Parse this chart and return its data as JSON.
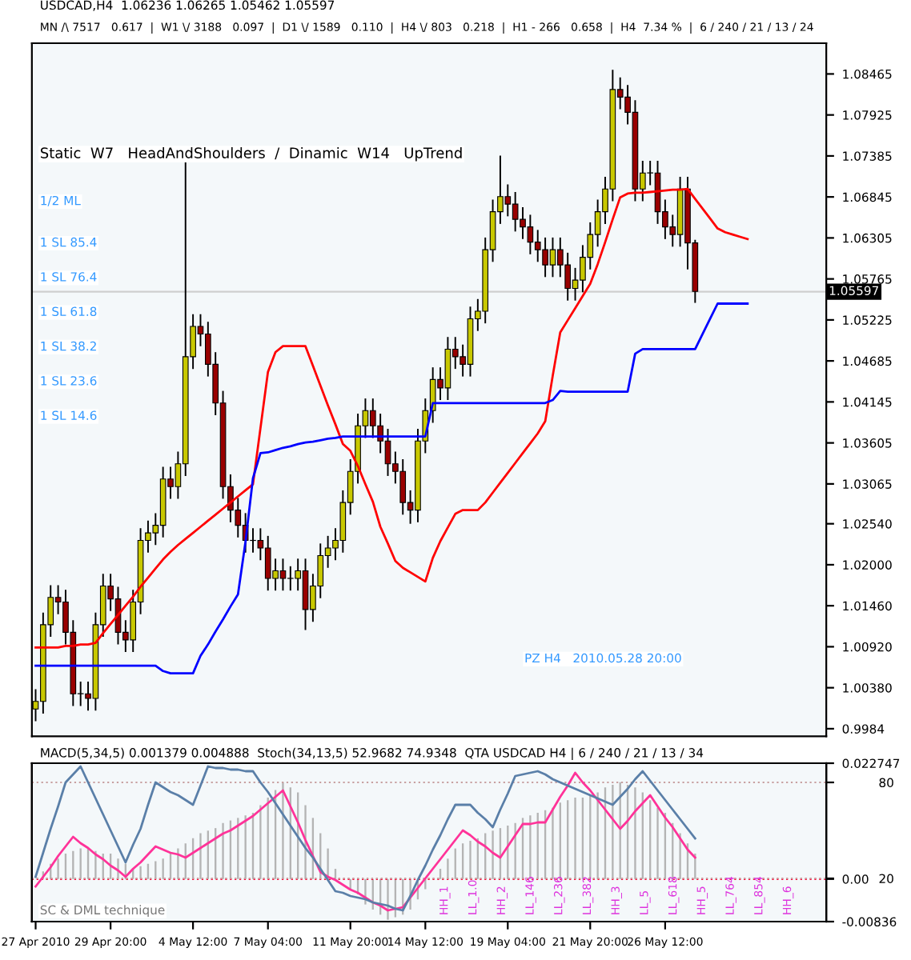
{
  "chart_data": [
    {
      "type": "candlestick",
      "title": "USDCAD,H4  1.06236 1.06265 1.05462 1.05597",
      "subtitle": "MN /\\ 7517   0.617  |  W1 \\/ 3188   0.097  |  D1 \\/ 1589   0.110  |  H4 \\/ 803   0.218  |  H1 - 266   0.658  |  H4  7.34 %  |  6 / 240 / 21 / 13 / 24",
      "categories": [
        null,
        null,
        null,
        null,
        null,
        null,
        null,
        null,
        null,
        null,
        null,
        null,
        null,
        null,
        null,
        null,
        null,
        null,
        null,
        null,
        null,
        null,
        null,
        null,
        null,
        null,
        null,
        null,
        null,
        null,
        null,
        null,
        null,
        null,
        null,
        null,
        null,
        null,
        null,
        null,
        null,
        null,
        null,
        null,
        null,
        null,
        null,
        null,
        null,
        null,
        null,
        null,
        null,
        null,
        null,
        null,
        null,
        null,
        null,
        null,
        null,
        null,
        null,
        null,
        null,
        null,
        null,
        null,
        null,
        null,
        null,
        null,
        null,
        null,
        null,
        null,
        null,
        null,
        null,
        null,
        null,
        null,
        null,
        null,
        null,
        null,
        null,
        null,
        null,
        null,
        null,
        null,
        null,
        null,
        null,
        null,
        null,
        null,
        null,
        null,
        null,
        null,
        null,
        null,
        null,
        null
      ],
      "ohlc": [
        [
          1.001,
          1.0035,
          0.9995,
          1.002
        ],
        [
          1.002,
          1.0136,
          1.0005,
          1.0121
        ],
        [
          1.0121,
          1.0172,
          1.0106,
          1.0157
        ],
        [
          1.0157,
          1.0172,
          1.0136,
          1.0151
        ],
        [
          1.0151,
          1.0166,
          1.0096,
          1.0111
        ],
        [
          1.0111,
          1.0126,
          1.0015,
          1.003
        ],
        [
          1.003,
          1.0045,
          1.0015,
          1.003
        ],
        [
          1.003,
          1.0045,
          1.0009,
          1.0024
        ],
        [
          1.0024,
          1.0136,
          1.0009,
          1.0121
        ],
        [
          1.0121,
          1.0187,
          1.0106,
          1.0172
        ],
        [
          1.0172,
          1.0187,
          1.014,
          1.0155
        ],
        [
          1.0155,
          1.017,
          1.0096,
          1.0111
        ],
        [
          1.0111,
          1.0126,
          1.0086,
          1.0101
        ],
        [
          1.0101,
          1.0166,
          1.0086,
          1.0151
        ],
        [
          1.0151,
          1.0247,
          1.0136,
          1.0232
        ],
        [
          1.0232,
          1.0257,
          1.0217,
          1.0242
        ],
        [
          1.0242,
          1.0267,
          1.0227,
          1.0252
        ],
        [
          1.0252,
          1.0328,
          1.0237,
          1.0313
        ],
        [
          1.0313,
          1.0328,
          1.0288,
          1.0303
        ],
        [
          1.0303,
          1.0348,
          1.0288,
          1.0333
        ],
        [
          1.0333,
          1.073,
          1.0318,
          1.0474
        ],
        [
          1.0474,
          1.0529,
          1.0459,
          1.0514
        ],
        [
          1.0514,
          1.0529,
          1.0489,
          1.0504
        ],
        [
          1.0504,
          1.0519,
          1.0449,
          1.0464
        ],
        [
          1.0464,
          1.0479,
          1.0398,
          1.0413
        ],
        [
          1.0413,
          1.0428,
          1.0288,
          1.0303
        ],
        [
          1.0303,
          1.0318,
          1.0257,
          1.0272
        ],
        [
          1.0272,
          1.0287,
          1.0237,
          1.0252
        ],
        [
          1.0252,
          1.0267,
          1.0217,
          1.0232
        ],
        [
          1.0232,
          1.0247,
          1.0217,
          1.0232
        ],
        [
          1.0232,
          1.0247,
          1.0207,
          1.0222
        ],
        [
          1.0222,
          1.0237,
          1.0167,
          1.0182
        ],
        [
          1.0182,
          1.0207,
          1.0167,
          1.0192
        ],
        [
          1.0192,
          1.0207,
          1.0167,
          1.0182
        ],
        [
          1.0182,
          1.0197,
          1.0167,
          1.0182
        ],
        [
          1.0182,
          1.0207,
          1.0167,
          1.0192
        ],
        [
          1.0192,
          1.0207,
          1.0115,
          1.0141
        ],
        [
          1.0141,
          1.0187,
          1.0126,
          1.0172
        ],
        [
          1.0172,
          1.0227,
          1.0157,
          1.0212
        ],
        [
          1.0212,
          1.0237,
          1.0197,
          1.0222
        ],
        [
          1.0222,
          1.0247,
          1.0207,
          1.0232
        ],
        [
          1.0232,
          1.0297,
          1.0217,
          1.0282
        ],
        [
          1.0282,
          1.0338,
          1.0267,
          1.0323
        ],
        [
          1.0323,
          1.0398,
          1.0308,
          1.0383
        ],
        [
          1.0383,
          1.0418,
          1.0368,
          1.0403
        ],
        [
          1.0403,
          1.0418,
          1.0368,
          1.0383
        ],
        [
          1.0383,
          1.0398,
          1.0348,
          1.0363
        ],
        [
          1.0363,
          1.0378,
          1.0318,
          1.0333
        ],
        [
          1.0333,
          1.0348,
          1.0308,
          1.0323
        ],
        [
          1.0323,
          1.0338,
          1.0267,
          1.0282
        ],
        [
          1.0282,
          1.0297,
          1.0255,
          1.0272
        ],
        [
          1.0272,
          1.0378,
          1.0257,
          1.0363
        ],
        [
          1.0363,
          1.0418,
          1.0348,
          1.0403
        ],
        [
          1.0403,
          1.0459,
          1.0388,
          1.0444
        ],
        [
          1.0444,
          1.0459,
          1.0418,
          1.0433
        ],
        [
          1.0433,
          1.0499,
          1.0418,
          1.0484
        ],
        [
          1.0484,
          1.0499,
          1.0459,
          1.0474
        ],
        [
          1.0474,
          1.0489,
          1.0449,
          1.0464
        ],
        [
          1.0464,
          1.0539,
          1.0449,
          1.0524
        ],
        [
          1.0524,
          1.0549,
          1.0509,
          1.0534
        ],
        [
          1.0534,
          1.063,
          1.0519,
          1.0615
        ],
        [
          1.0615,
          1.068,
          1.06,
          1.0665
        ],
        [
          1.0665,
          1.0738,
          1.065,
          1.0685
        ],
        [
          1.0685,
          1.07,
          1.066,
          1.0675
        ],
        [
          1.0675,
          1.069,
          1.064,
          1.0655
        ],
        [
          1.0655,
          1.067,
          1.063,
          1.0645
        ],
        [
          1.0645,
          1.066,
          1.061,
          1.0625
        ],
        [
          1.0625,
          1.064,
          1.06,
          1.0615
        ],
        [
          1.0615,
          1.063,
          1.058,
          1.0595
        ],
        [
          1.0595,
          1.063,
          1.058,
          1.0615
        ],
        [
          1.0615,
          1.063,
          1.058,
          1.0595
        ],
        [
          1.0595,
          1.061,
          1.0549,
          1.0564
        ],
        [
          1.0564,
          1.059,
          1.0549,
          1.0575
        ],
        [
          1.0575,
          1.062,
          1.056,
          1.0605
        ],
        [
          1.0605,
          1.065,
          1.059,
          1.0635
        ],
        [
          1.0635,
          1.068,
          1.062,
          1.0665
        ],
        [
          1.0665,
          1.071,
          1.065,
          1.0695
        ],
        [
          1.0695,
          1.0851,
          1.068,
          1.0826
        ],
        [
          1.0826,
          1.0841,
          1.0801,
          1.0816
        ],
        [
          1.0816,
          1.0831,
          1.0781,
          1.0796
        ],
        [
          1.0796,
          1.0811,
          1.068,
          1.0695
        ],
        [
          1.0695,
          1.0731,
          1.068,
          1.0716
        ],
        [
          1.0716,
          1.0731,
          1.0701,
          1.0716
        ],
        [
          1.0716,
          1.0731,
          1.065,
          1.0665
        ],
        [
          1.0665,
          1.068,
          1.063,
          1.0645
        ],
        [
          1.0645,
          1.066,
          1.062,
          1.0635
        ],
        [
          1.0635,
          1.071,
          1.062,
          1.0695
        ],
        [
          1.0695,
          1.071,
          1.059,
          1.0624
        ],
        [
          1.0624,
          1.0627,
          1.0546,
          1.056
        ],
        null,
        null,
        null,
        null,
        null,
        null,
        null,
        null,
        null,
        null,
        null,
        null,
        null,
        null,
        null,
        null,
        null
      ],
      "colors": [
        "#c8c800",
        "#c8c800",
        "#c8c800",
        "#990000",
        "#990000",
        "#990000",
        "#c8c800",
        "#990000",
        "#c8c800",
        "#c8c800",
        "#990000",
        "#990000",
        "#990000",
        "#c8c800",
        "#c8c800",
        "#c8c800",
        "#c8c800",
        "#c8c800",
        "#990000",
        "#c8c800",
        "#c8c800",
        "#c8c800",
        "#990000",
        "#990000",
        "#990000",
        "#990000",
        "#990000",
        "#990000",
        "#990000",
        "#c8c800",
        "#990000",
        "#990000",
        "#c8c800",
        "#990000",
        "#c8c800",
        "#c8c800",
        "#990000",
        "#c8c800",
        "#c8c800",
        "#c8c800",
        "#c8c800",
        "#c8c800",
        "#c8c800",
        "#c8c800",
        "#c8c800",
        "#990000",
        "#990000",
        "#990000",
        "#990000",
        "#990000",
        "#990000",
        "#c8c800",
        "#c8c800",
        "#c8c800",
        "#990000",
        "#c8c800",
        "#990000",
        "#990000",
        "#c8c800",
        "#c8c800",
        "#c8c800",
        "#c8c800",
        "#c8c800",
        "#990000",
        "#990000",
        "#990000",
        "#990000",
        "#990000",
        "#990000",
        "#c8c800",
        "#990000",
        "#990000",
        "#c8c800",
        "#c8c800",
        "#c8c800",
        "#c8c800",
        "#c8c800",
        "#c8c800",
        "#990000",
        "#990000",
        "#990000",
        "#c8c800",
        "#c8c800",
        "#990000",
        "#990000",
        "#990000",
        "#c8c800",
        "#990000",
        "#990000",
        null,
        null,
        null,
        null,
        null,
        null,
        null,
        null,
        null,
        null,
        null,
        null,
        null,
        null,
        null,
        null,
        null
      ],
      "series": [
        {
          "type": "line",
          "color": "#ff0000",
          "values": [
            1.0091,
            1.0091,
            1.0091,
            1.0091,
            1.0093,
            1.0093,
            1.0095,
            1.0095,
            1.0097,
            1.011,
            1.0122,
            1.0134,
            1.0146,
            1.0158,
            1.0171,
            1.0183,
            1.0195,
            1.0207,
            1.0217,
            1.0226,
            1.0234,
            1.0242,
            1.025,
            1.0258,
            1.0266,
            1.0274,
            1.0282,
            1.029,
            1.0298,
            1.0306,
            1.038,
            1.0454,
            1.048,
            1.0488,
            1.0488,
            1.0488,
            1.0488,
            1.0462,
            1.0436,
            1.041,
            1.0385,
            1.0359,
            1.035,
            1.033,
            1.0306,
            1.0283,
            1.025,
            1.0228,
            1.0205,
            1.0196,
            1.019,
            1.0184,
            1.0178,
            1.0209,
            1.0231,
            1.0249,
            1.0267,
            1.0272,
            1.0272,
            1.0272,
            1.0282,
            1.0295,
            1.0308,
            1.0321,
            1.0334,
            1.0347,
            1.036,
            1.0373,
            1.0389,
            1.0449,
            1.0506,
            1.0522,
            1.0538,
            1.0554,
            1.057,
            1.0596,
            1.0625,
            1.0655,
            1.0684,
            1.0689,
            1.069,
            1.069,
            1.0691,
            1.0692,
            1.0693,
            1.0694,
            1.0694,
            1.0695,
            1.0682,
            1.0669,
            1.0656,
            1.0643,
            1.0638,
            1.0635,
            1.0632,
            1.0629,
            null,
            null,
            null,
            null,
            null,
            null,
            null,
            null,
            null,
            null
          ]
        },
        {
          "type": "line",
          "color": "#0000ff",
          "values": [
            1.0067,
            1.0067,
            1.0067,
            1.0067,
            1.0067,
            1.0067,
            1.0067,
            1.0067,
            1.0067,
            1.0067,
            1.0067,
            1.0067,
            1.0067,
            1.0067,
            1.0067,
            1.0067,
            1.0067,
            1.006,
            1.0057,
            1.0057,
            1.0057,
            1.0057,
            1.008,
            1.0095,
            1.0112,
            1.0128,
            1.0145,
            1.0161,
            1.023,
            1.0314,
            1.0347,
            1.0348,
            1.0351,
            1.0354,
            1.0356,
            1.0359,
            1.0361,
            1.0362,
            1.0364,
            1.0366,
            1.0367,
            1.0369,
            1.0369,
            1.0369,
            1.0369,
            1.0369,
            1.0369,
            1.0369,
            1.0369,
            1.0369,
            1.0369,
            1.0369,
            1.0369,
            1.0413,
            1.0413,
            1.0413,
            1.0413,
            1.0413,
            1.0413,
            1.0413,
            1.0413,
            1.0413,
            1.0413,
            1.0413,
            1.0413,
            1.0413,
            1.0413,
            1.0413,
            1.0413,
            1.0417,
            1.0429,
            1.0428,
            1.0428,
            1.0428,
            1.0428,
            1.0428,
            1.0428,
            1.0428,
            1.0428,
            1.0428,
            1.0478,
            1.0484,
            1.0484,
            1.0484,
            1.0484,
            1.0484,
            1.0484,
            1.0484,
            1.0484,
            1.0504,
            1.0524,
            1.0544,
            1.0544,
            1.0544,
            1.0544,
            1.0544,
            null,
            null,
            null,
            null,
            null,
            null,
            null,
            null,
            null,
            null
          ]
        }
      ],
      "ylim": [
        0.9974,
        1.0887
      ],
      "yticks": [
        1.08465,
        1.07925,
        1.07385,
        1.06845,
        1.06305,
        1.05765,
        1.05225,
        1.04685,
        1.04145,
        1.03605,
        1.03065,
        {
          "value": 1.0254,
          "label": "1.02540"
        },
        {
          "value": 1.02,
          "label": "1.02000"
        },
        {
          "value": 1.0146,
          "label": "1.01460"
        },
        {
          "value": 1.0092,
          "label": "1.00920"
        },
        {
          "value": 1.0038,
          "label": "1.00380"
        },
        0.9984
      ],
      "tick_labels": "y",
      "grid": false,
      "ref_lines": [
        {
          "axis": "y",
          "value": 1.05597,
          "label": "1.05597",
          "color": "#cfcfcf"
        }
      ],
      "annotations": [
        "Static  W7   HeadAndShoulders  /  Dinamic  W14   UpTrend",
        "1/2 ML",
        "1 SL 85.4",
        "1 SL 76.4",
        "1 SL 61.8",
        "1 SL 38.2",
        "1 SL 23.6",
        "1 SL 14.6",
        "PZ H4   2010.05.28 20:00"
      ]
    },
    {
      "type": "bar",
      "title": "MACD(5,34,5) 0.001379 0.004888  Stoch(34,13,5) 52.9682 74.9348  QTA USDCAD H4 | 6 / 240 / 21 / 13 / 34",
      "categories": [
        "27 Apr 2010",
        null,
        null,
        null,
        null,
        null,
        null,
        null,
        null,
        null,
        "29 Apr 20:00",
        null,
        null,
        null,
        null,
        null,
        null,
        null,
        null,
        null,
        null,
        "4 May 12:00",
        null,
        null,
        null,
        null,
        null,
        null,
        null,
        null,
        null,
        "7 May 04:00",
        null,
        null,
        null,
        null,
        null,
        null,
        null,
        null,
        null,
        null,
        "11 May 20:00",
        null,
        null,
        null,
        null,
        null,
        null,
        null,
        null,
        null,
        "14 May 12:00",
        null,
        null,
        null,
        null,
        null,
        null,
        null,
        null,
        null,
        null,
        "19 May 04:00",
        null,
        null,
        null,
        null,
        null,
        null,
        null,
        null,
        null,
        null,
        "21 May 20:00",
        null,
        null,
        null,
        null,
        null,
        null,
        null,
        null,
        null,
        "26 May 12:00",
        null,
        null,
        null,
        null,
        null,
        null,
        null,
        null,
        null,
        null,
        null,
        null,
        null,
        null,
        null,
        null,
        null,
        null,
        null,
        null,
        null
      ],
      "values": [
        0.0,
        0.0015,
        0.003,
        0.004,
        0.005,
        0.0055,
        0.006,
        0.006,
        0.0055,
        0.005,
        0.005,
        0.004,
        0.003,
        0.002,
        0.0025,
        0.003,
        0.0035,
        0.004,
        0.005,
        0.006,
        0.007,
        0.008,
        0.009,
        0.0095,
        0.01,
        0.011,
        0.0115,
        0.012,
        0.0125,
        0.013,
        0.0145,
        0.016,
        0.0175,
        0.019,
        0.018,
        0.017,
        0.0145,
        0.012,
        0.009,
        0.006,
        0.002,
        0.0,
        -0.002,
        -0.003,
        -0.005,
        -0.006,
        -0.007,
        -0.008,
        -0.0075,
        -0.007,
        -0.006,
        -0.004,
        -0.002,
        0.0,
        0.002,
        0.004,
        0.006,
        0.007,
        0.0075,
        0.008,
        0.009,
        0.0095,
        0.01,
        0.0105,
        0.011,
        0.012,
        0.0125,
        0.013,
        0.0135,
        0.014,
        0.015,
        0.0155,
        0.016,
        0.016,
        0.0165,
        0.017,
        0.018,
        0.0185,
        0.019,
        0.0185,
        0.018,
        0.017,
        0.0155,
        0.014,
        0.013,
        0.011,
        0.009,
        0.007,
        0.005,
        null,
        null,
        null,
        null,
        null,
        null,
        null,
        null,
        null,
        null,
        null,
        null,
        null,
        null,
        null,
        null,
        null
      ],
      "color": "#b4b4b4",
      "series": [
        {
          "type": "line",
          "axis": "y2",
          "color": "#ff3399",
          "values": [
            15,
            21,
            27,
            34,
            40,
            46,
            42,
            39,
            35,
            32,
            28,
            25,
            21,
            26,
            30,
            35,
            40,
            38,
            36,
            35,
            33,
            36,
            39,
            42,
            45,
            48,
            50,
            53,
            56,
            59,
            63,
            67,
            71,
            75,
            65,
            55,
            44,
            34,
            24,
            21,
            19,
            16,
            13,
            11,
            8,
            5,
            3,
            0,
            1,
            2,
            8,
            14,
            20,
            26,
            32,
            38,
            44,
            50,
            47,
            43,
            40,
            36,
            33,
            40,
            47,
            54,
            54,
            55,
            55,
            63,
            71,
            78,
            86,
            80,
            75,
            69,
            63,
            57,
            51,
            56,
            62,
            67,
            72,
            65,
            58,
            52,
            45,
            38,
            33,
            null,
            null,
            null,
            null,
            null,
            null,
            null,
            null,
            null,
            null,
            null,
            null,
            null,
            null,
            null,
            null,
            null
          ]
        },
        {
          "type": "line",
          "axis": "y2",
          "color": "#5a7fa8",
          "values": [
            21,
            36,
            51,
            65,
            80,
            85,
            90,
            80,
            70,
            60,
            50,
            40,
            30,
            41,
            51,
            66,
            80,
            77,
            74,
            72,
            69,
            66,
            78,
            90,
            89,
            89,
            88,
            88,
            87,
            87,
            80,
            74,
            67,
            60,
            53,
            46,
            39,
            33,
            26,
            19,
            12,
            11,
            9,
            8,
            7,
            5,
            4,
            3,
            1,
            0,
            9,
            19,
            28,
            38,
            47,
            57,
            66,
            66,
            66,
            61,
            57,
            52,
            63,
            73,
            84,
            85,
            86,
            87,
            85,
            82,
            80,
            78,
            76,
            74,
            72,
            70,
            68,
            66,
            71,
            76,
            82,
            87,
            81,
            75,
            69,
            63,
            57,
            51,
            45,
            null,
            null,
            null,
            null,
            null,
            null,
            null,
            null,
            null,
            null,
            null,
            null,
            null,
            null,
            null,
            null,
            null
          ]
        }
      ],
      "ylim": [
        -0.00836,
        0.022747
      ],
      "yticks": [
        0.022747,
        {
          "value": 0,
          "label": "0.00"
        },
        -0.00836
      ],
      "y2lim": [
        -7,
        92
      ],
      "y2ticks": [
        80,
        20
      ],
      "grid": false,
      "ref_lines": [
        {
          "axis": "y",
          "value": 0,
          "color": "#ff0033",
          "line_style": "dotted"
        },
        {
          "axis": "y2",
          "value": 80,
          "color": "#c8a0a0",
          "line_style": "dotted"
        },
        {
          "axis": "y2",
          "value": 20,
          "color": "#c8a0a0",
          "line_style": "dotted"
        }
      ],
      "annotations": [
        "SC & DML technique",
        "HH_1",
        "LL_1.0",
        "HH_2",
        "LL_146",
        "LL_236",
        "LL_382",
        "HH_3",
        "LL_5",
        "LL_618",
        "HH_5",
        "LL_764",
        "LL_854",
        "HH_6"
      ]
    }
  ]
}
